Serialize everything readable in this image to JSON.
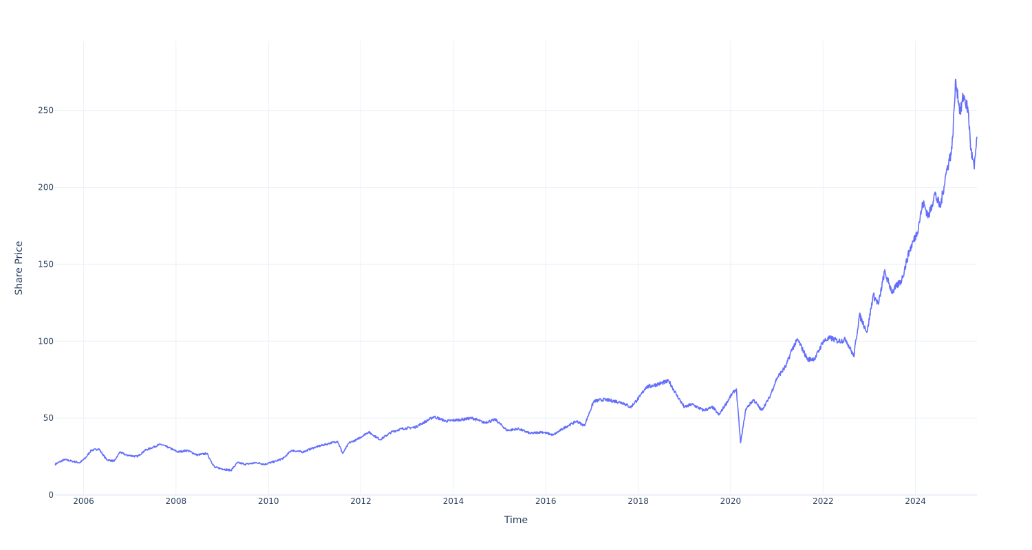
{
  "chart_data": {
    "type": "line",
    "title": "",
    "xlabel": "Time",
    "ylabel": "Share Price",
    "xlim": [
      "2005-05-20",
      "2025-05-01"
    ],
    "ylim": [
      0,
      295
    ],
    "grid": true,
    "legend": "none",
    "line_color": "#636efa",
    "x_ticks": [
      "2006",
      "2008",
      "2010",
      "2012",
      "2014",
      "2016",
      "2018",
      "2020",
      "2022",
      "2024"
    ],
    "y_ticks": [
      "0",
      "50",
      "100",
      "150",
      "200",
      "250"
    ],
    "series": [
      {
        "x": [
          "2005-05-20",
          "2005-08-01",
          "2005-10-01",
          "2005-12-01",
          "2006-01-15",
          "2006-03-01",
          "2006-05-01",
          "2006-07-01",
          "2006-09-01",
          "2006-10-15",
          "2006-12-01",
          "2007-03-01",
          "2007-05-01",
          "2007-07-01",
          "2007-09-01",
          "2007-11-01",
          "2008-01-15",
          "2008-04-01",
          "2008-06-15",
          "2008-09-01",
          "2008-11-01",
          "2009-01-01",
          "2009-03-10",
          "2009-05-01",
          "2009-07-01",
          "2009-10-01",
          "2009-12-01",
          "2010-03-01",
          "2010-05-01",
          "2010-07-01",
          "2010-10-01",
          "2011-01-01",
          "2011-04-01",
          "2011-07-01",
          "2011-08-10",
          "2011-10-01",
          "2011-12-01",
          "2012-03-01",
          "2012-06-01",
          "2012-09-01",
          "2012-11-15",
          "2013-03-01",
          "2013-06-01",
          "2013-08-01",
          "2013-11-01",
          "2014-03-01",
          "2014-06-01",
          "2014-09-01",
          "2014-12-01",
          "2015-03-01",
          "2015-06-01",
          "2015-09-01",
          "2015-12-01",
          "2016-03-01",
          "2016-06-01",
          "2016-09-01",
          "2016-11-01",
          "2017-01-15",
          "2017-04-01",
          "2017-07-01",
          "2017-09-01",
          "2017-11-01",
          "2018-01-15",
          "2018-03-01",
          "2018-06-01",
          "2018-09-01",
          "2018-11-01",
          "2019-01-01",
          "2019-03-01",
          "2019-06-01",
          "2019-08-15",
          "2019-10-01",
          "2020-01-15",
          "2020-02-15",
          "2020-03-20",
          "2020-05-01",
          "2020-07-01",
          "2020-09-01",
          "2020-11-01",
          "2021-01-01",
          "2021-03-15",
          "2021-05-01",
          "2021-06-15",
          "2021-09-01",
          "2021-11-01",
          "2022-01-01",
          "2022-03-01",
          "2022-05-01",
          "2022-07-01",
          "2022-09-01",
          "2022-10-15",
          "2022-12-15",
          "2023-02-01",
          "2023-03-15",
          "2023-05-01",
          "2023-07-01",
          "2023-09-15",
          "2023-11-15",
          "2024-01-15",
          "2024-03-01",
          "2024-04-15",
          "2024-06-01",
          "2024-07-15",
          "2024-09-01",
          "2024-10-15",
          "2024-11-15",
          "2024-12-20",
          "2025-01-15",
          "2025-02-20",
          "2025-03-15",
          "2025-04-10",
          "2025-05-01"
        ],
        "y": [
          20,
          23,
          22,
          21,
          24,
          29,
          30,
          23,
          22,
          28,
          26,
          25,
          29,
          31,
          33,
          31,
          28,
          29,
          26,
          27,
          18,
          17,
          16,
          21,
          20,
          21,
          20,
          22,
          24,
          29,
          28,
          31,
          33,
          35,
          27,
          34,
          36,
          41,
          36,
          41,
          43,
          44,
          48,
          51,
          48,
          49,
          50,
          47,
          49,
          42,
          43,
          40,
          41,
          39,
          44,
          48,
          45,
          61,
          62,
          61,
          60,
          57,
          64,
          70,
          72,
          74,
          65,
          57,
          59,
          55,
          57,
          52,
          66,
          69,
          34,
          56,
          62,
          55,
          63,
          76,
          84,
          95,
          101,
          88,
          89,
          100,
          102,
          100,
          101,
          90,
          117,
          106,
          130,
          124,
          145,
          132,
          140,
          159,
          171,
          190,
          181,
          196,
          187,
          210,
          225,
          270,
          248,
          260,
          250,
          224,
          212,
          233
        ]
      }
    ]
  }
}
